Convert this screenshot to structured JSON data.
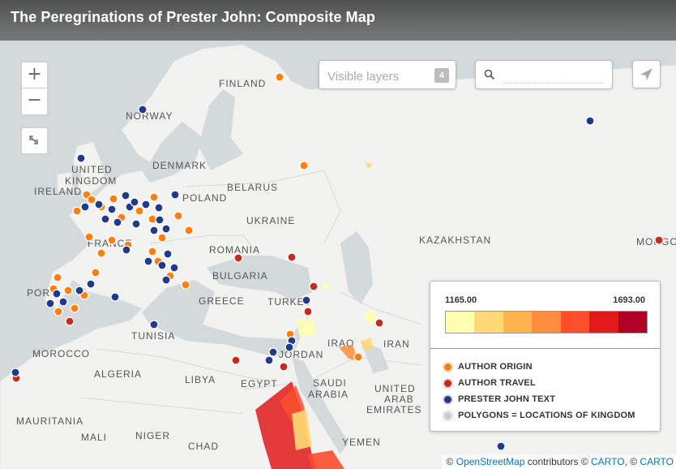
{
  "title": "The Peregrinations of Prester John: Composite Map",
  "controls": {
    "zoom_in": "+",
    "zoom_out": "−",
    "layers_label": "Visible layers",
    "layers_count": "4",
    "search_placeholder": ""
  },
  "map_labels": [
    {
      "text": "FINLAND"
    },
    {
      "text": "NORWAY"
    },
    {
      "text": "DENMARK"
    },
    {
      "text": "UNITED"
    },
    {
      "text": "KINGDOM"
    },
    {
      "text": "IRELAND"
    },
    {
      "text": "BELARUS"
    },
    {
      "text": "POLAND"
    },
    {
      "text": "UKRAINE"
    },
    {
      "text": "KAZAKHSTAN"
    },
    {
      "text": "MONGO"
    },
    {
      "text": "ROMANIA"
    },
    {
      "text": "BULGARIA"
    },
    {
      "text": "FRANCE"
    },
    {
      "text": "POR"
    },
    {
      "text": "GREECE"
    },
    {
      "text": "TURKEY"
    },
    {
      "text": "TUNISIA"
    },
    {
      "text": "MOROCCO"
    },
    {
      "text": "ALGERIA"
    },
    {
      "text": "LIBYA"
    },
    {
      "text": "EGYPT"
    },
    {
      "text": "JORDAN"
    },
    {
      "text": "IRAQ"
    },
    {
      "text": "IRAN"
    },
    {
      "text": "SAUDI"
    },
    {
      "text": "ARABIA"
    },
    {
      "text": "UNITED"
    },
    {
      "text": "ARAB"
    },
    {
      "text": "EMIRATES"
    },
    {
      "text": "MAURITANIA"
    },
    {
      "text": "MALI"
    },
    {
      "text": "NIGER"
    },
    {
      "text": "CHAD"
    },
    {
      "text": "YEMEN"
    }
  ],
  "legend": {
    "min": "1165.00",
    "max": "1693.00",
    "ramp_colors": [
      "#ffffb2",
      "#fed976",
      "#feb24c",
      "#fd8d3c",
      "#fc4e2a",
      "#e31a1c",
      "#b10026"
    ],
    "items": [
      {
        "label": "AUTHOR ORIGIN",
        "color": "#ff7f0e"
      },
      {
        "label": "AUTHOR TRAVEL",
        "color": "#c62a1f"
      },
      {
        "label": "PRESTER JOHN TEXT",
        "color": "#1f3b8a"
      },
      {
        "label": "POLYGONS = LOCATIONS OF KINGDOM",
        "color": "#cccccc"
      }
    ]
  },
  "attribution": {
    "copy": "© ",
    "osm": "OpenStreetMap",
    "contributors": " contributors © ",
    "carto1": "CARTO",
    "sep": ", © ",
    "carto2": "CARTO"
  }
}
